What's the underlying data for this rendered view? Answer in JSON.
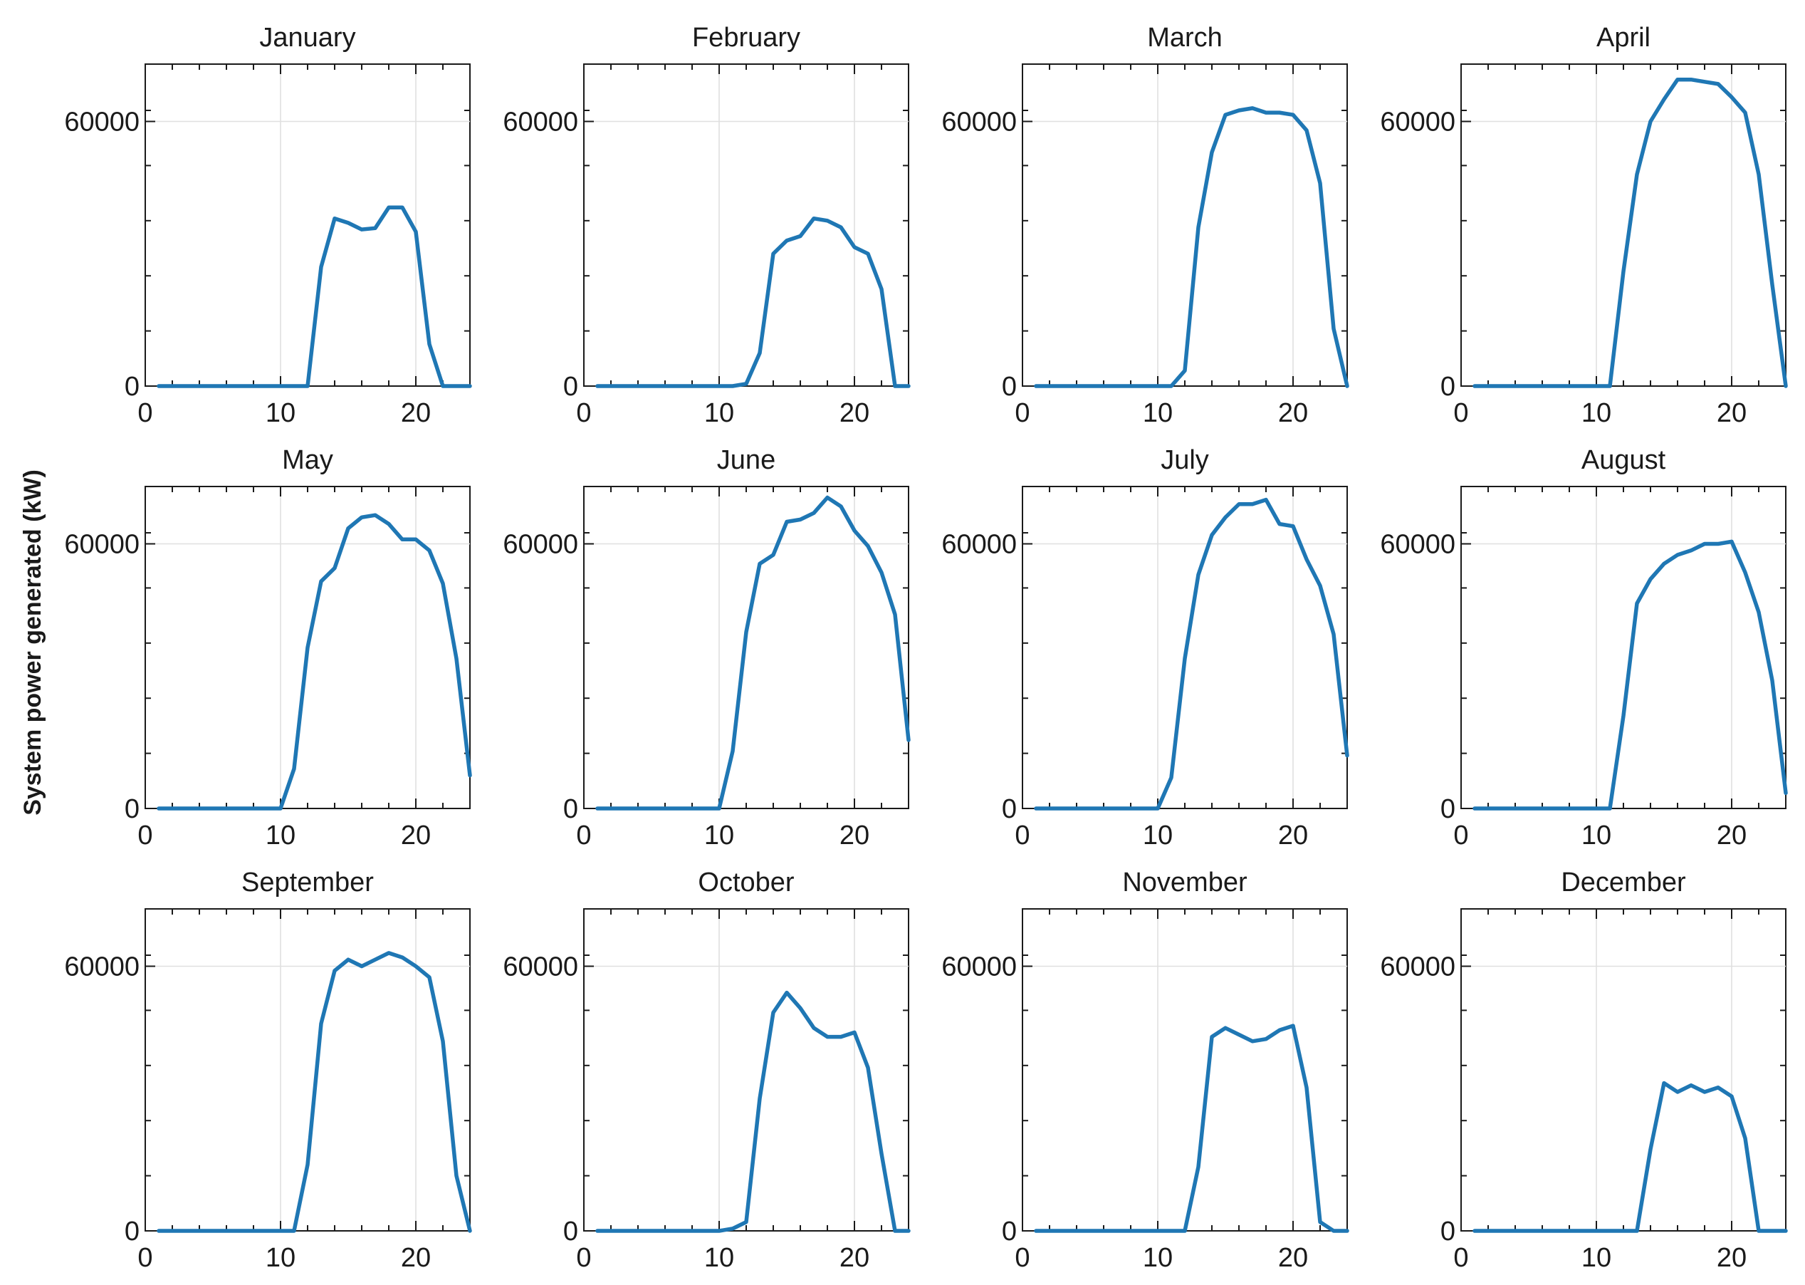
{
  "chart_data": {
    "type": "line",
    "ylabel": "System power generated (kW)",
    "color": "#1f77b4",
    "xlim": [
      0,
      24
    ],
    "ylim": [
      0,
      73000
    ],
    "xticks": [
      0,
      10,
      20
    ],
    "yticks": [
      0,
      60000
    ],
    "grid": true,
    "x": [
      1,
      2,
      3,
      4,
      5,
      6,
      7,
      8,
      9,
      10,
      11,
      12,
      13,
      14,
      15,
      16,
      17,
      18,
      19,
      20,
      21,
      22,
      23,
      24
    ],
    "panels": [
      {
        "title": "January",
        "values": [
          0,
          0,
          0,
          0,
          0,
          0,
          0,
          0,
          0,
          0,
          0,
          0,
          27000,
          38000,
          37000,
          35500,
          35800,
          40500,
          40500,
          35000,
          9500,
          0,
          0,
          0
        ]
      },
      {
        "title": "February",
        "values": [
          0,
          0,
          0,
          0,
          0,
          0,
          0,
          0,
          0,
          0,
          0,
          500,
          7500,
          30000,
          33000,
          34000,
          38000,
          37500,
          36000,
          31500,
          30000,
          22000,
          0,
          0
        ]
      },
      {
        "title": "March",
        "values": [
          0,
          0,
          0,
          0,
          0,
          0,
          0,
          0,
          0,
          0,
          0,
          3500,
          36000,
          53000,
          61500,
          62500,
          63000,
          62000,
          62000,
          61500,
          58000,
          46000,
          13000,
          0
        ]
      },
      {
        "title": "April",
        "values": [
          0,
          0,
          0,
          0,
          0,
          0,
          0,
          0,
          0,
          0,
          0,
          26000,
          48000,
          60000,
          65000,
          69500,
          69500,
          69000,
          68500,
          65500,
          62000,
          48000,
          23000,
          0
        ]
      },
      {
        "title": "May",
        "values": [
          0,
          0,
          0,
          0,
          0,
          0,
          0,
          0,
          0,
          0,
          9000,
          36500,
          51500,
          54500,
          63500,
          66000,
          66500,
          64500,
          61000,
          61000,
          58500,
          51000,
          34000,
          7500
        ]
      },
      {
        "title": "June",
        "values": [
          0,
          0,
          0,
          0,
          0,
          0,
          0,
          0,
          0,
          0,
          13000,
          40000,
          55500,
          57500,
          65000,
          65500,
          67000,
          70500,
          68500,
          63000,
          59500,
          53500,
          44000,
          15500
        ]
      },
      {
        "title": "July",
        "values": [
          0,
          0,
          0,
          0,
          0,
          0,
          0,
          0,
          0,
          0,
          7000,
          34000,
          53000,
          62000,
          66000,
          69000,
          69000,
          70000,
          64500,
          64000,
          56500,
          50500,
          39500,
          12000
        ]
      },
      {
        "title": "August",
        "values": [
          0,
          0,
          0,
          0,
          0,
          0,
          0,
          0,
          0,
          0,
          0,
          21000,
          46500,
          52000,
          55500,
          57500,
          58500,
          60000,
          60000,
          60500,
          53500,
          44500,
          29000,
          3500
        ]
      },
      {
        "title": "September",
        "values": [
          0,
          0,
          0,
          0,
          0,
          0,
          0,
          0,
          0,
          0,
          0,
          15000,
          47000,
          59000,
          61500,
          60000,
          61500,
          63000,
          62000,
          60000,
          57500,
          43000,
          12500,
          0
        ]
      },
      {
        "title": "October",
        "values": [
          0,
          0,
          0,
          0,
          0,
          0,
          0,
          0,
          0,
          0,
          500,
          2000,
          30000,
          49500,
          54000,
          50500,
          46000,
          44000,
          44000,
          45000,
          37000,
          17500,
          0,
          0
        ]
      },
      {
        "title": "November",
        "values": [
          0,
          0,
          0,
          0,
          0,
          0,
          0,
          0,
          0,
          0,
          0,
          0,
          14500,
          44000,
          46000,
          44500,
          43000,
          43500,
          45500,
          46500,
          32500,
          2000,
          0,
          0
        ]
      },
      {
        "title": "December",
        "values": [
          0,
          0,
          0,
          0,
          0,
          0,
          0,
          0,
          0,
          0,
          0,
          0,
          0,
          18500,
          33500,
          31500,
          33000,
          31500,
          32500,
          30500,
          21000,
          0,
          0,
          0
        ]
      }
    ]
  }
}
